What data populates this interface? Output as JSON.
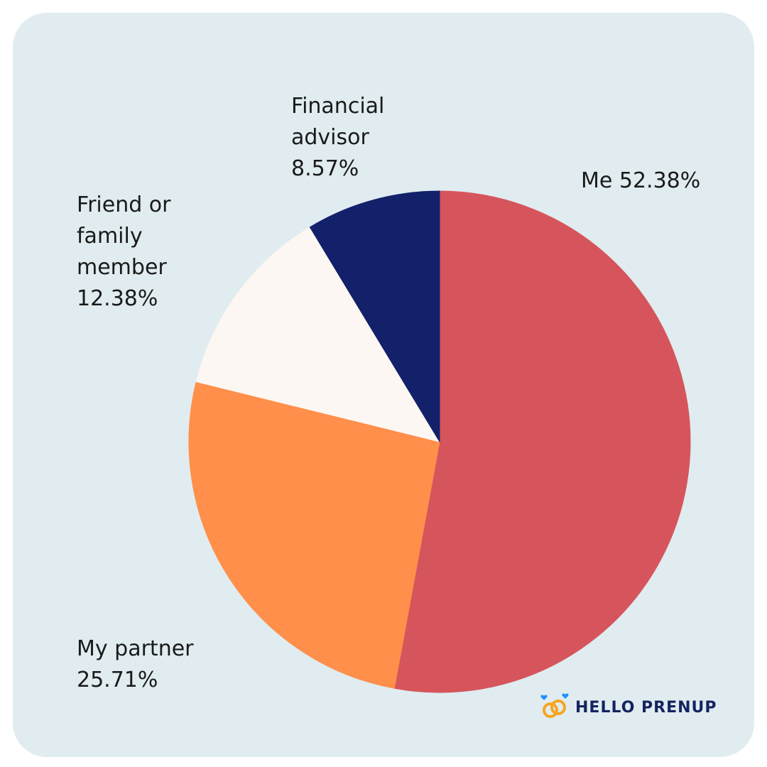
{
  "chart_data": {
    "type": "pie",
    "start_angle_deg": 0,
    "direction": "clockwise",
    "slices": [
      {
        "label": "Me",
        "value": 52.38,
        "display": "Me 52.38%",
        "color": "#d6555c"
      },
      {
        "label": "My partner",
        "value": 25.71,
        "display_lines": [
          "My partner",
          "25.71%"
        ],
        "color": "#ff8f4a"
      },
      {
        "label": "Friend or family member",
        "value": 12.38,
        "display_lines": [
          "Friend or",
          "family",
          "member",
          "12.38%"
        ],
        "color": "#fcf7f2"
      },
      {
        "label": "Financial advisor",
        "value": 8.57,
        "display_lines": [
          "Financial",
          "advisor",
          "8.57%"
        ],
        "color": "#12216a"
      }
    ]
  },
  "branding": {
    "logo_text": "HELLO PRENUP",
    "ring_color": "#f5a623",
    "heart_color": "#1e90ff"
  }
}
